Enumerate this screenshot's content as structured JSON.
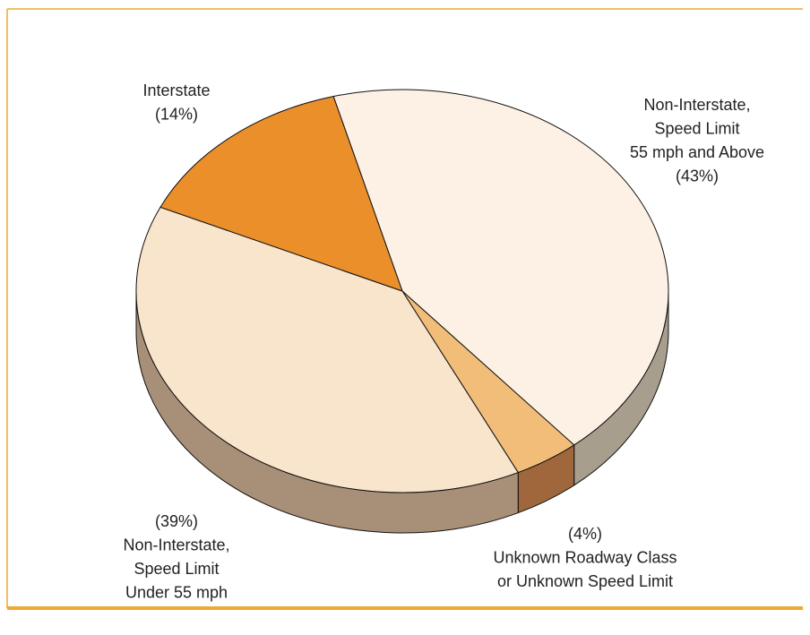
{
  "chart_data": {
    "type": "pie3d",
    "categories": [
      [
        "Non-Interstate,",
        "Speed Limit",
        "55 mph and Above"
      ],
      [
        "Unknown Roadway Class",
        "or Unknown Speed Limit"
      ],
      [
        "Non-Interstate,",
        "Speed Limit",
        "Under 55 mph"
      ],
      [
        "Interstate"
      ]
    ],
    "values": [
      43,
      4,
      39,
      14
    ],
    "value_labels": [
      "(43%)",
      "(4%)",
      "(39%)",
      "(14%)"
    ],
    "colors": [
      "#fdf1e6",
      "#f2bd78",
      "#f9e4cc",
      "#ea8f2a"
    ],
    "side_colors": [
      "#a89e8e",
      "#a0673c",
      "#a88f78",
      "#9a6a3a"
    ]
  }
}
